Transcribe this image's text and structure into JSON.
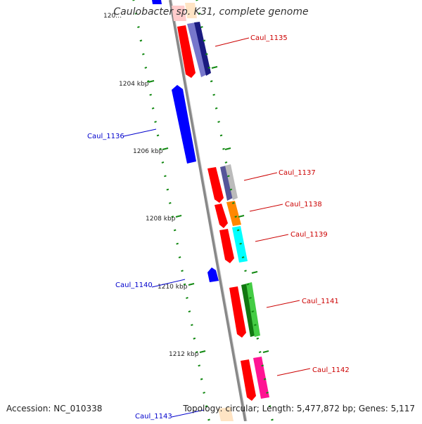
{
  "title": "Caulobacter sp. K31, complete genome",
  "footer": {
    "accession": "Accession: NC_010338",
    "topology": "Topology: circular; Length: 5,477,872 bp; Genes: 5,117"
  },
  "colors": {
    "forward_label": "#cc0000",
    "reverse_label": "#0000cc",
    "tick": "#118811",
    "backbone": "#888888"
  },
  "ticks": [
    "120…",
    "1204 kbp",
    "1206 kbp",
    "1208 kbp",
    "1210 kbp",
    "1212 kbp"
  ],
  "genes": [
    {
      "name": "Caul_1135",
      "strand": "forward",
      "color": "#cc0000"
    },
    {
      "name": "Caul_1136",
      "strand": "reverse",
      "color": "#0000cc"
    },
    {
      "name": "Caul_1137",
      "strand": "forward",
      "color": "#cc0000"
    },
    {
      "name": "Caul_1138",
      "strand": "forward",
      "color": "#cc0000"
    },
    {
      "name": "Caul_1139",
      "strand": "forward",
      "color": "#cc0000"
    },
    {
      "name": "Caul_1140",
      "strand": "reverse",
      "color": "#0000cc"
    },
    {
      "name": "Caul_1141",
      "strand": "forward",
      "color": "#cc0000"
    },
    {
      "name": "Caul_1142",
      "strand": "forward",
      "color": "#cc0000"
    },
    {
      "name": "Caul_1143",
      "strand": "reverse",
      "color": "#0000cc"
    }
  ],
  "feature_colors": {
    "red": "#ff0000",
    "blue": "#0000ff",
    "navy": "#1a1a80",
    "slate": "#7777cc",
    "grey": "#bbbbbb",
    "orange": "#ff8800",
    "cyan": "#00ffff",
    "green": "#22aa22",
    "pink": "#ff1493",
    "lightpink": "#ffcccc",
    "peach": "#ffe4c4"
  }
}
